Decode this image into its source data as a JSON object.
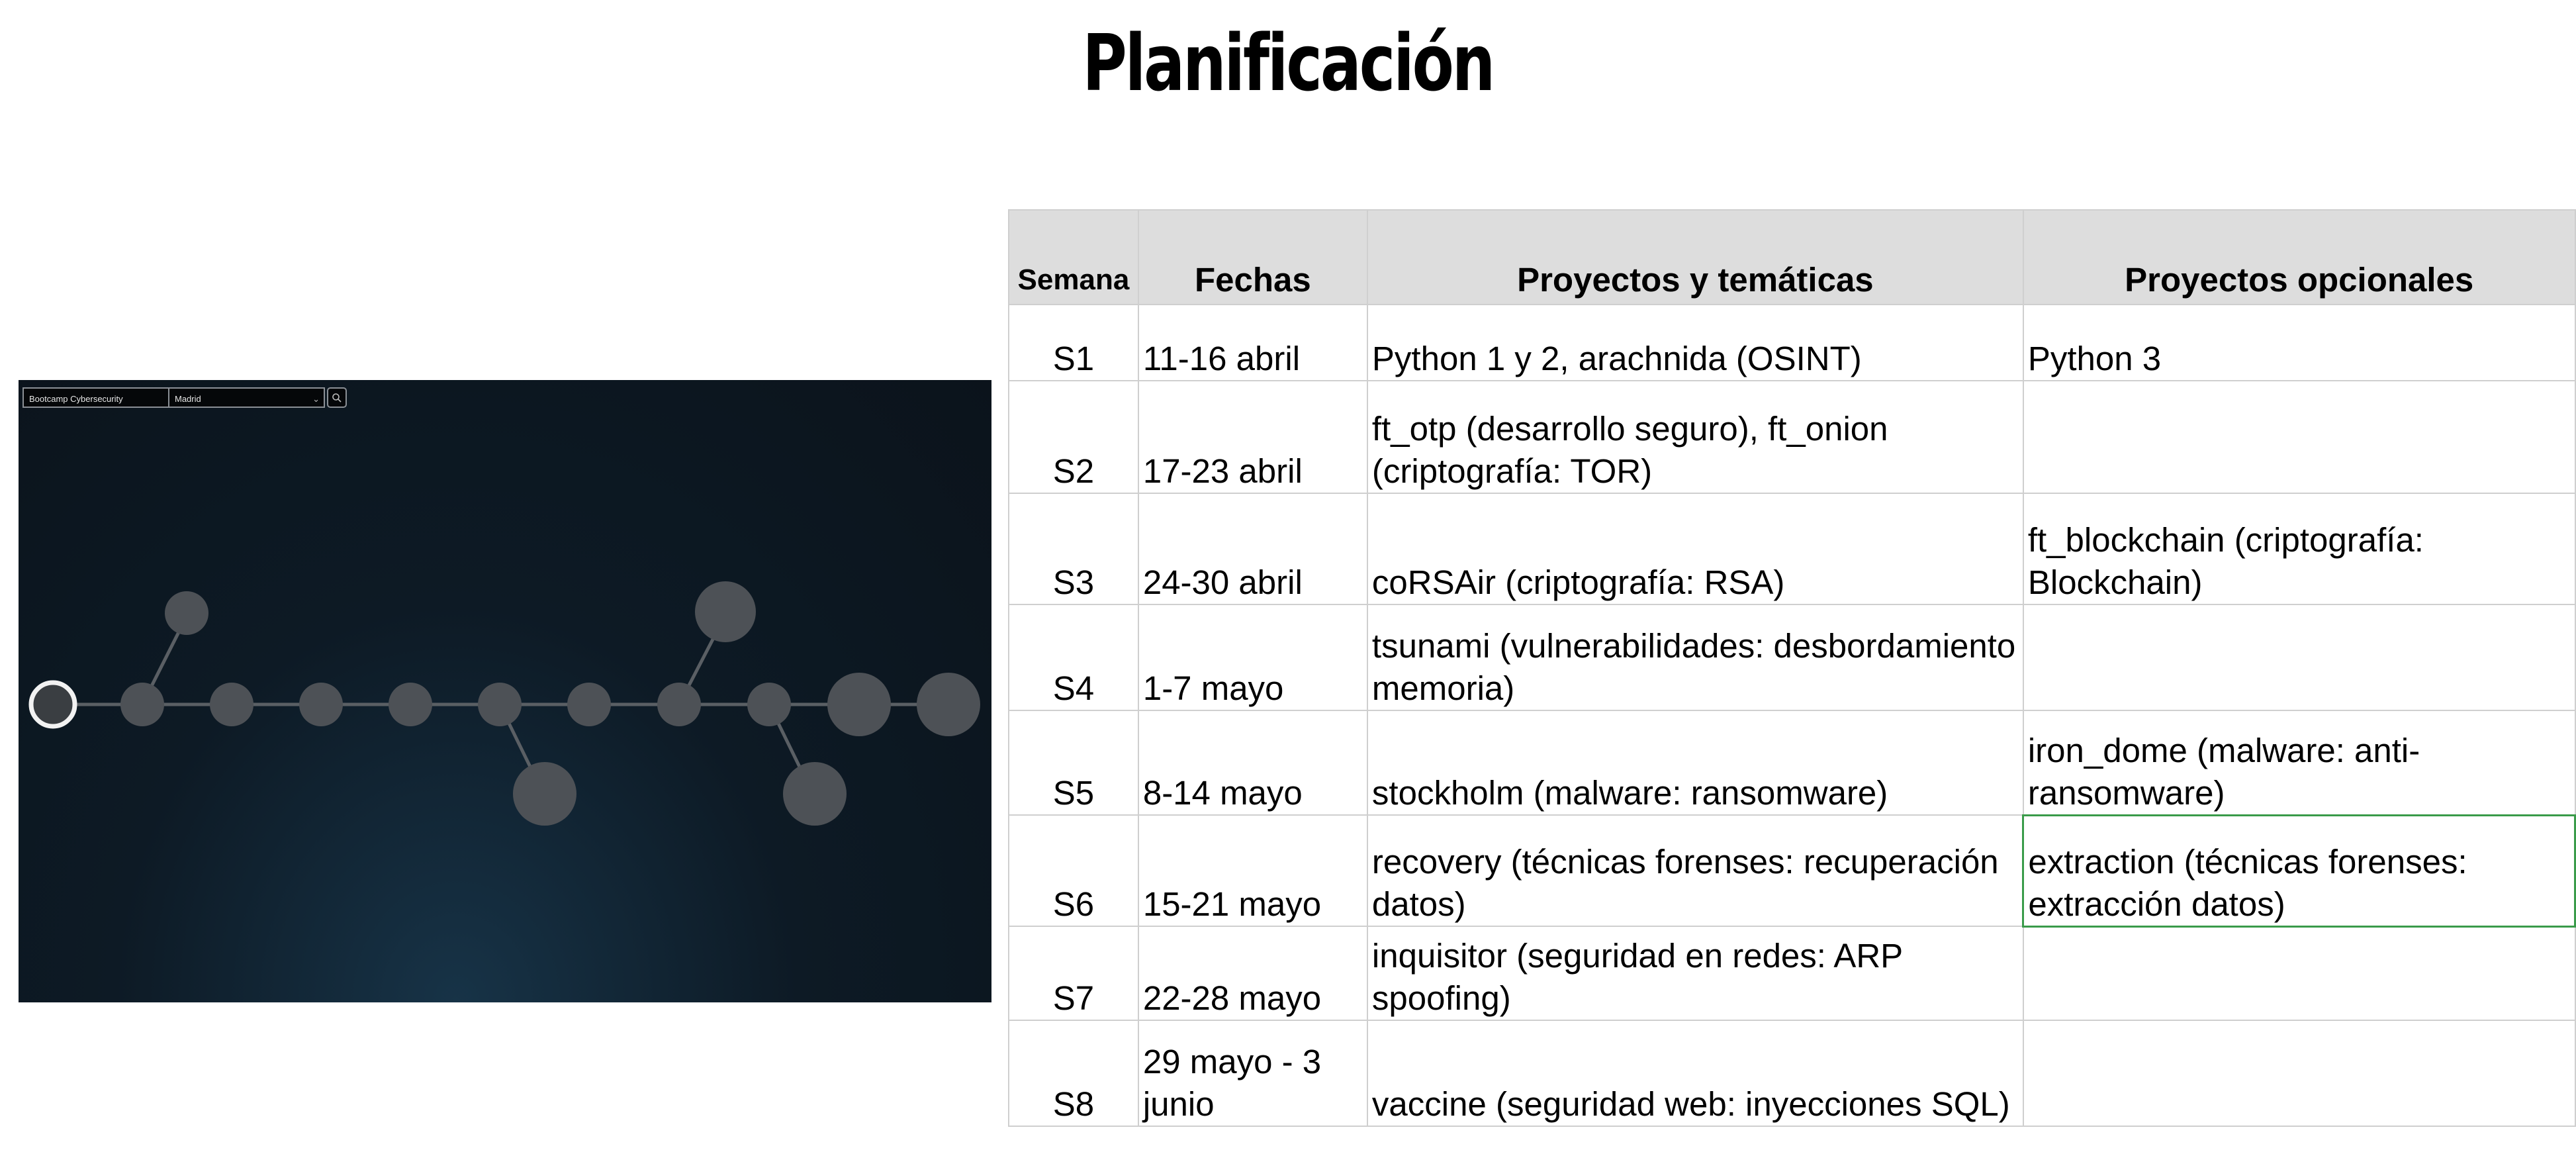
{
  "title": "Planificación",
  "screenshot": {
    "bootcamp_select": "Bootcamp Cybersecurity",
    "city_select": "Madrid",
    "search_icon": "search-icon",
    "nodes": [
      "",
      "",
      "",
      "",
      "",
      "",
      "",
      "",
      "",
      "",
      ""
    ],
    "branch_nodes": [
      "",
      "",
      ""
    ]
  },
  "table": {
    "headers": [
      "Semana",
      "Fechas",
      "Proyectos y temáticas",
      "Proyectos opcionales"
    ],
    "rows": [
      {
        "week": "S1",
        "dates": "11-16 abril",
        "projects": "Python 1 y 2, arachnida (OSINT)",
        "optional": "Python 3"
      },
      {
        "week": "S2",
        "dates": "17-23 abril",
        "projects": "ft_otp (desarrollo seguro), ft_onion (criptografía: TOR)",
        "optional": ""
      },
      {
        "week": "S3",
        "dates": "24-30 abril",
        "projects": "coRSAir (criptografía: RSA)",
        "optional": "ft_blockchain (criptografía: Blockchain)"
      },
      {
        "week": "S4",
        "dates": "1-7 mayo",
        "projects": "tsunami (vulnerabilidades: desbordamiento memoria)",
        "optional": ""
      },
      {
        "week": "S5",
        "dates": "8-14 mayo",
        "projects": "stockholm (malware: ransomware)",
        "optional": "iron_dome (malware: anti-ransomware)"
      },
      {
        "week": "S6",
        "dates": "15-21 mayo",
        "projects": "recovery (técnicas forenses: recuperación datos)",
        "optional": "extraction (técnicas forenses: extracción datos)"
      },
      {
        "week": "S7",
        "dates": "22-28 mayo",
        "projects": "inquisitor (seguridad en redes: ARP spoofing)",
        "optional": ""
      },
      {
        "week": "S8",
        "dates": "29 mayo - 3 junio",
        "projects": "vaccine (seguridad web: inyecciones SQL)",
        "optional": ""
      }
    ]
  }
}
